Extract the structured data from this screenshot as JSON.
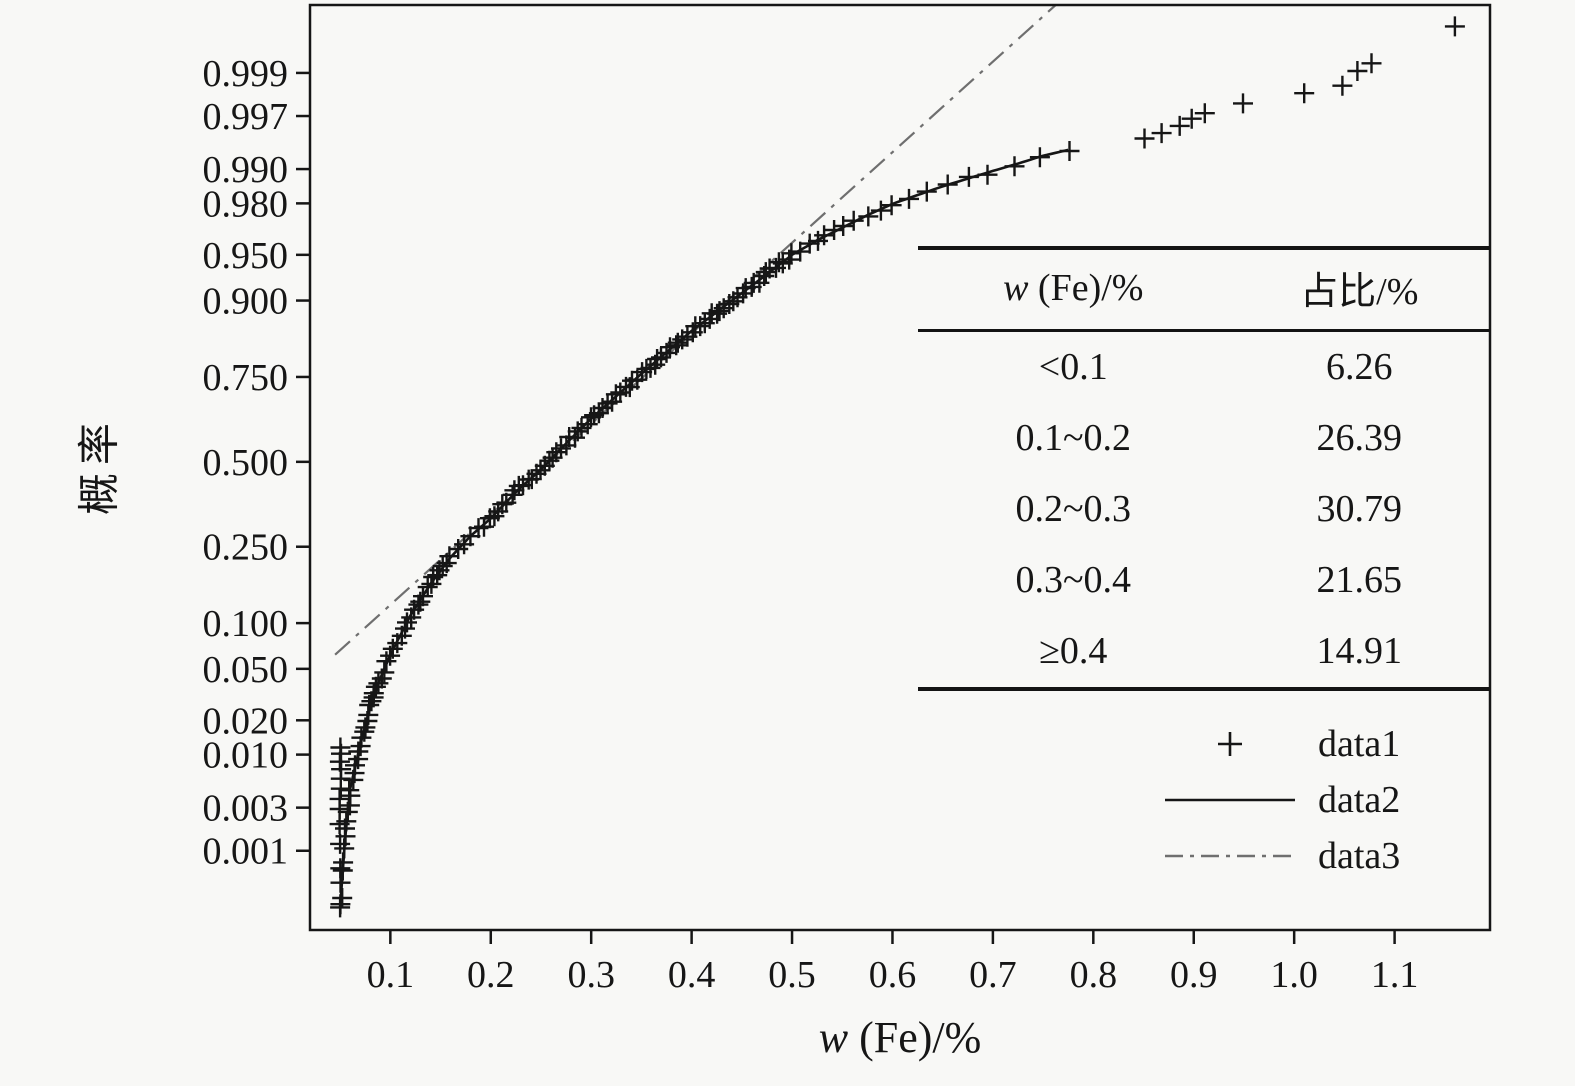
{
  "figure": {
    "background": "#f8f8f6",
    "ink": "#161616",
    "fit_line_color": "#6f6f6f"
  },
  "chart_data": {
    "type": "scatter",
    "subtype": "normal-probability-plot",
    "title": "",
    "xlabel": "w (Fe)/%",
    "xlabel_var": "w",
    "xlabel_rest": " (Fe)/%",
    "ylabel": "概率",
    "x_tick_labels": [
      "0.1",
      "0.2",
      "0.3",
      "0.4",
      "0.5",
      "0.6",
      "0.7",
      "0.8",
      "0.9",
      "1.0",
      "1.1"
    ],
    "y_tick_labels": [
      "0.999",
      "0.997",
      "0.990",
      "0.980",
      "0.950",
      "0.900",
      "0.750",
      "0.500",
      "0.250",
      "0.100",
      "0.050",
      "0.020",
      "0.010",
      "0.003",
      "0.001"
    ],
    "x_range": [
      0.02,
      1.195
    ],
    "z_range": [
      -3.72,
      3.63
    ],
    "grid": false,
    "legend_position": "lower-right",
    "series": [
      {
        "name": "data1",
        "kind": "points",
        "marker": "+"
      },
      {
        "name": "data2",
        "kind": "line",
        "style": "solid"
      },
      {
        "name": "data3",
        "kind": "line",
        "style": "dash-dot"
      }
    ],
    "cdf_anchors": [
      [
        0.05,
        0.0002
      ],
      [
        0.055,
        0.0014
      ],
      [
        0.06,
        0.0047
      ],
      [
        0.07,
        0.0122
      ],
      [
        0.08,
        0.0256
      ],
      [
        0.09,
        0.0427
      ],
      [
        0.1,
        0.0626
      ],
      [
        0.12,
        0.111
      ],
      [
        0.14,
        0.166
      ],
      [
        0.16,
        0.224
      ],
      [
        0.18,
        0.278
      ],
      [
        0.2,
        0.3265
      ],
      [
        0.225,
        0.405
      ],
      [
        0.25,
        0.476
      ],
      [
        0.275,
        0.558
      ],
      [
        0.3,
        0.6344
      ],
      [
        0.325,
        0.699
      ],
      [
        0.35,
        0.758
      ],
      [
        0.375,
        0.808
      ],
      [
        0.4,
        0.8509
      ],
      [
        0.425,
        0.883
      ],
      [
        0.45,
        0.91
      ],
      [
        0.475,
        0.932
      ],
      [
        0.5,
        0.95
      ],
      [
        0.525,
        0.9608
      ],
      [
        0.55,
        0.9686
      ],
      [
        0.575,
        0.975
      ],
      [
        0.6,
        0.9798
      ],
      [
        0.625,
        0.983
      ],
      [
        0.65,
        0.9857
      ],
      [
        0.675,
        0.9878
      ],
      [
        0.7,
        0.9896
      ],
      [
        0.725,
        0.9911
      ],
      [
        0.75,
        0.9925
      ],
      [
        0.775,
        0.9934
      ]
    ],
    "min_value_stack": {
      "x": 0.05,
      "p": [
        0.00022,
        0.00062,
        0.0012,
        0.002,
        0.0029,
        0.0037,
        0.0047,
        0.0059,
        0.0073,
        0.0086,
        0.0102,
        0.0116
      ]
    },
    "upper_tail_points": [
      [
        0.851,
        0.9949
      ],
      [
        0.868,
        0.9955
      ],
      [
        0.886,
        0.9962
      ],
      [
        0.898,
        0.9968
      ],
      [
        0.911,
        0.9972
      ],
      [
        0.949,
        0.9978
      ],
      [
        1.01,
        0.9983
      ],
      [
        1.048,
        0.9986
      ],
      [
        1.063,
        0.99905
      ],
      [
        1.077,
        0.99923
      ],
      [
        1.16,
        0.99973
      ]
    ],
    "normal_fit": {
      "mu": 0.258,
      "sigma": 0.139,
      "x_start": 0.045
    }
  },
  "inset_table": {
    "header_col1_var": "w",
    "header_col1_rest": " (Fe)/%",
    "header_col2": "占比/%",
    "rows": [
      {
        "range": "<0.1",
        "share": "6.26"
      },
      {
        "range": "0.1~0.2",
        "share": "26.39"
      },
      {
        "range": "0.2~0.3",
        "share": "30.79"
      },
      {
        "range": "0.3~0.4",
        "share": "21.65"
      },
      {
        "range": "≥0.4",
        "share": "14.91"
      }
    ]
  },
  "legend": {
    "items": [
      {
        "symbol": "plus-marker",
        "label": "data1"
      },
      {
        "symbol": "solid-line",
        "label": "data2"
      },
      {
        "symbol": "dashdot-line",
        "label": "data3"
      }
    ]
  }
}
